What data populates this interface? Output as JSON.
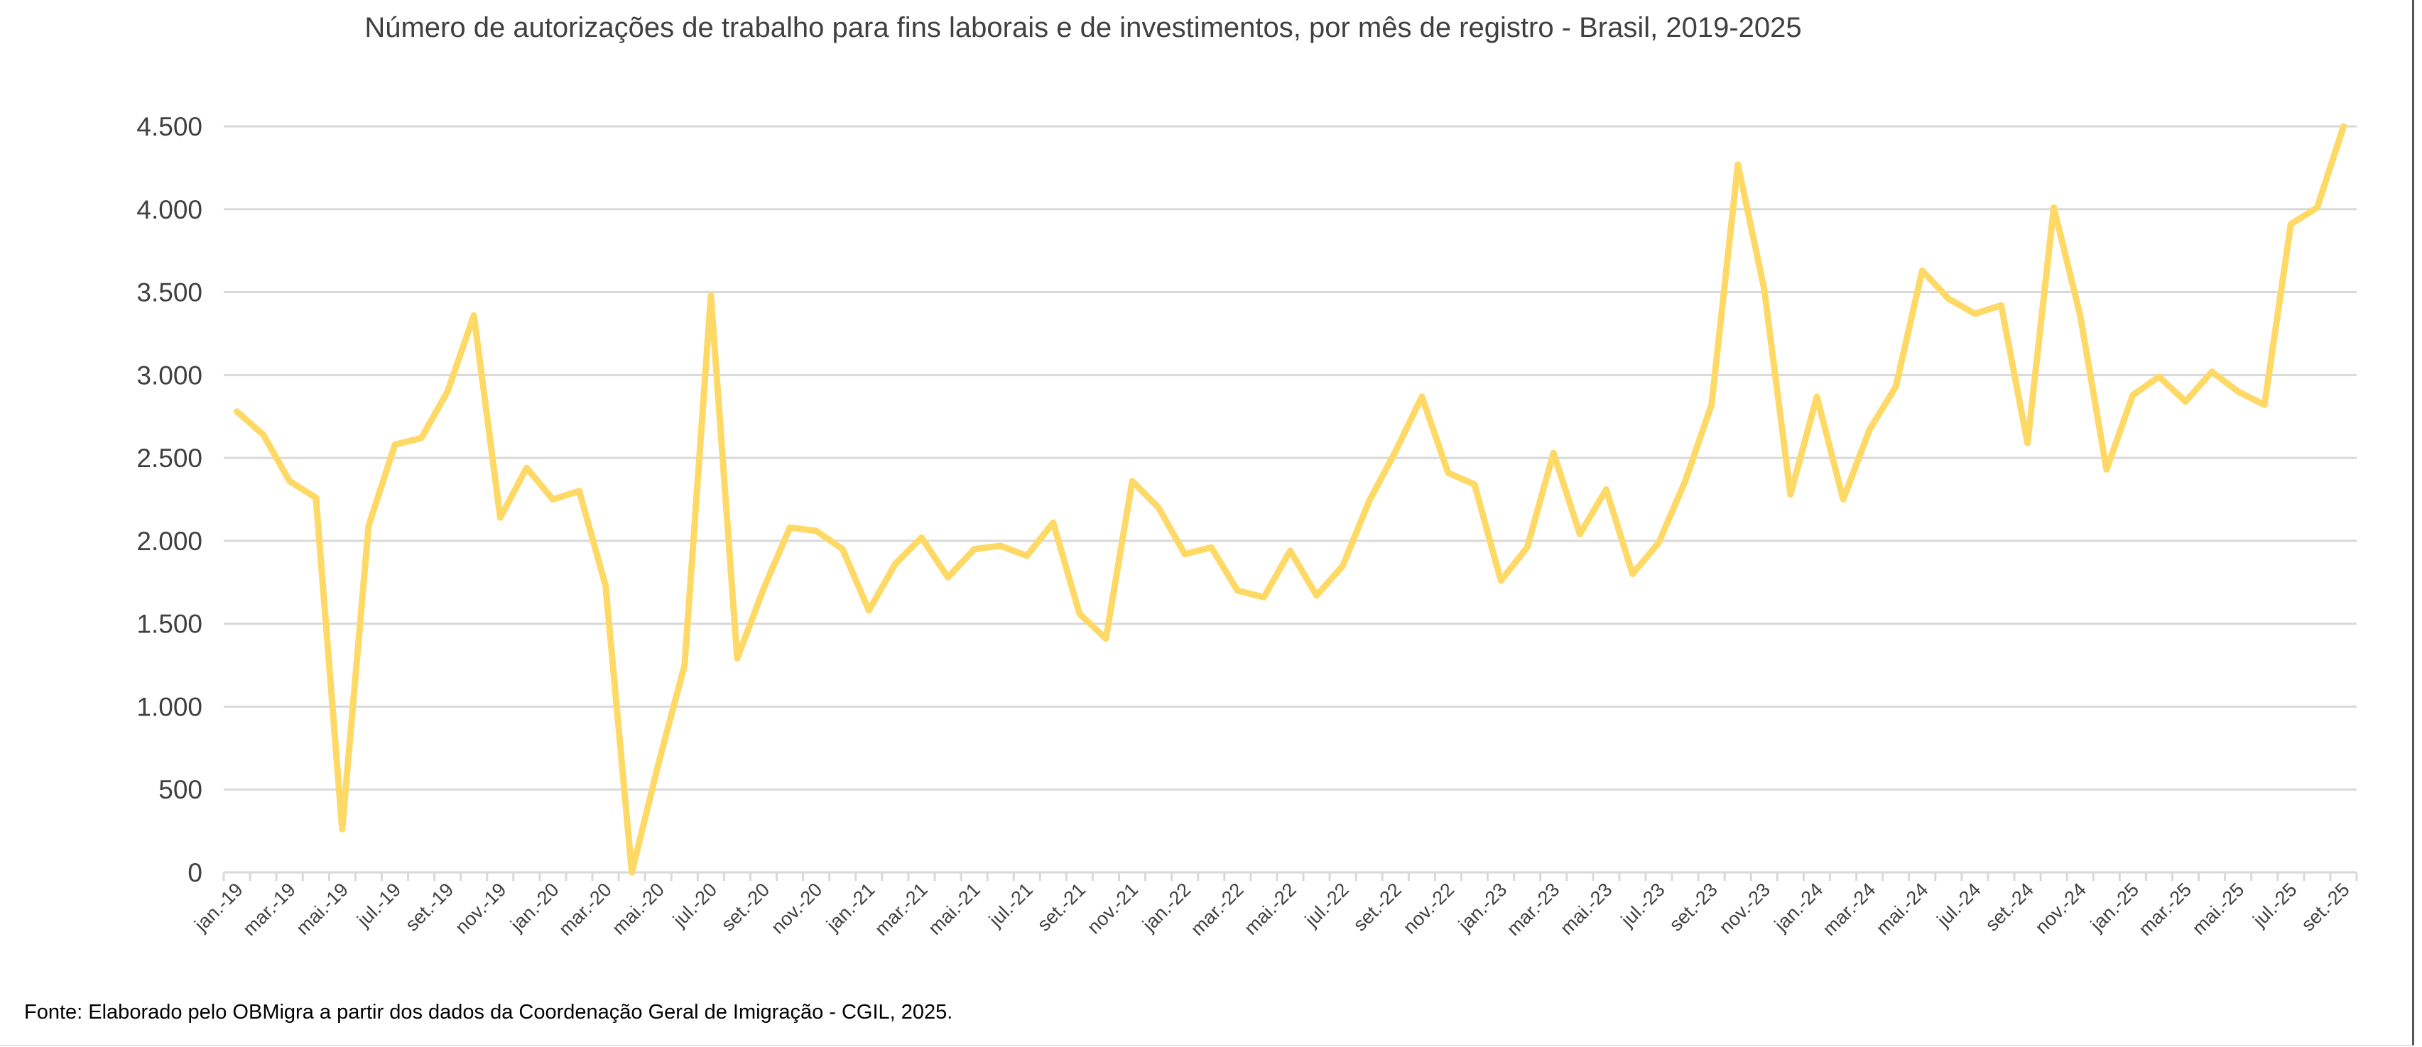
{
  "chart_data": {
    "type": "line",
    "title": "Número de autorizações de trabalho para fins laborais e de investimentos, por mês de registro - Brasil, 2019-2025",
    "xlabel": "",
    "ylabel": "",
    "ylim": [
      0,
      4500
    ],
    "yticks": [
      0,
      500,
      1000,
      1500,
      2000,
      2500,
      3000,
      3500,
      4000,
      4500
    ],
    "ytick_labels": [
      "0",
      "500",
      "1.000",
      "1.500",
      "2.000",
      "2.500",
      "3.000",
      "3.500",
      "4.000",
      "4.500"
    ],
    "grid": true,
    "legend": "none",
    "line_color": "#FFD966",
    "x": [
      "jan.-19",
      "fev.-19",
      "mar.-19",
      "abr.-19",
      "mai.-19",
      "jun.-19",
      "jul.-19",
      "ago.-19",
      "set.-19",
      "out.-19",
      "nov.-19",
      "dez.-19",
      "jan.-20",
      "fev.-20",
      "mar.-20",
      "abr.-20",
      "mai.-20",
      "jun.-20",
      "jul.-20",
      "ago.-20",
      "set.-20",
      "out.-20",
      "nov.-20",
      "dez.-20",
      "jan.-21",
      "fev.-21",
      "mar.-21",
      "abr.-21",
      "mai.-21",
      "jun.-21",
      "jul.-21",
      "ago.-21",
      "set.-21",
      "out.-21",
      "nov.-21",
      "dez.-21",
      "jan.-22",
      "fev.-22",
      "mar.-22",
      "abr.-22",
      "mai.-22",
      "jun.-22",
      "jul.-22",
      "ago.-22",
      "set.-22",
      "out.-22",
      "nov.-22",
      "dez.-22",
      "jan.-23",
      "fev.-23",
      "mar.-23",
      "abr.-23",
      "mai.-23",
      "jun.-23",
      "jul.-23",
      "ago.-23",
      "set.-23",
      "out.-23",
      "nov.-23",
      "dez.-23",
      "jan.-24",
      "fev.-24",
      "mar.-24",
      "abr.-24",
      "mai.-24",
      "jun.-24",
      "jul.-24",
      "ago.-24",
      "set.-24",
      "out.-24",
      "nov.-24",
      "dez.-24",
      "jan.-25",
      "fev.-25",
      "mar.-25",
      "abr.-25",
      "mai.-25",
      "jun.-25",
      "jul.-25",
      "ago.-25",
      "set.-25"
    ],
    "xtick_labels": [
      "jan.-19",
      "mar.-19",
      "mai.-19",
      "jul.-19",
      "set.-19",
      "nov.-19",
      "jan.-20",
      "mar.-20",
      "mai.-20",
      "jul.-20",
      "set.-20",
      "nov.-20",
      "jan.-21",
      "mar.-21",
      "mai.-21",
      "jul.-21",
      "set.-21",
      "nov.-21",
      "jan.-22",
      "mar.-22",
      "mai.-22",
      "jul.-22",
      "set.-22",
      "nov.-22",
      "jan.-23",
      "mar.-23",
      "mai.-23",
      "jul.-23",
      "set.-23",
      "nov.-23",
      "jan.-24",
      "mar.-24",
      "mai.-24",
      "jul.-24",
      "set.-24",
      "nov.-24",
      "jan.-25",
      "mar.-25",
      "mai.-25",
      "jul.-25",
      "set.-25"
    ],
    "values": [
      2780,
      2640,
      2360,
      2260,
      260,
      2090,
      2580,
      2620,
      2900,
      3360,
      2140,
      2440,
      2250,
      2300,
      1730,
      0,
      650,
      1250,
      3480,
      1290,
      1710,
      2080,
      2060,
      1950,
      1580,
      1860,
      2020,
      1780,
      1950,
      1970,
      1910,
      2110,
      1560,
      1410,
      2360,
      2200,
      1920,
      1960,
      1700,
      1660,
      1940,
      1670,
      1850,
      2240,
      2540,
      2870,
      2410,
      2340,
      1760,
      1960,
      2530,
      2040,
      2310,
      1800,
      1990,
      2360,
      2820,
      4270,
      3520,
      2280,
      2870,
      2250,
      2670,
      2930,
      3630,
      3460,
      3370,
      3420,
      2590,
      4010,
      3360,
      2430,
      2880,
      2990,
      2840,
      3020,
      2900,
      2820,
      3910,
      4010,
      4500
    ]
  },
  "footer": {
    "source": "Fonte: Elaborado pelo OBMigra a partir dos dados da Coordenação Geral de Imigração - CGIL, 2025."
  }
}
